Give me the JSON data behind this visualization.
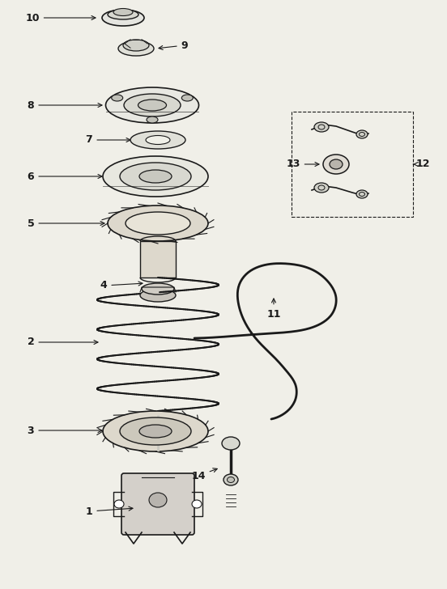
{
  "bg_color": "#f0efe8",
  "line_color": "#1a1a1a",
  "figsize": [
    5.52,
    7.28
  ],
  "dpi": 100,
  "xlim": [
    0,
    552
  ],
  "ylim": [
    0,
    728
  ]
}
